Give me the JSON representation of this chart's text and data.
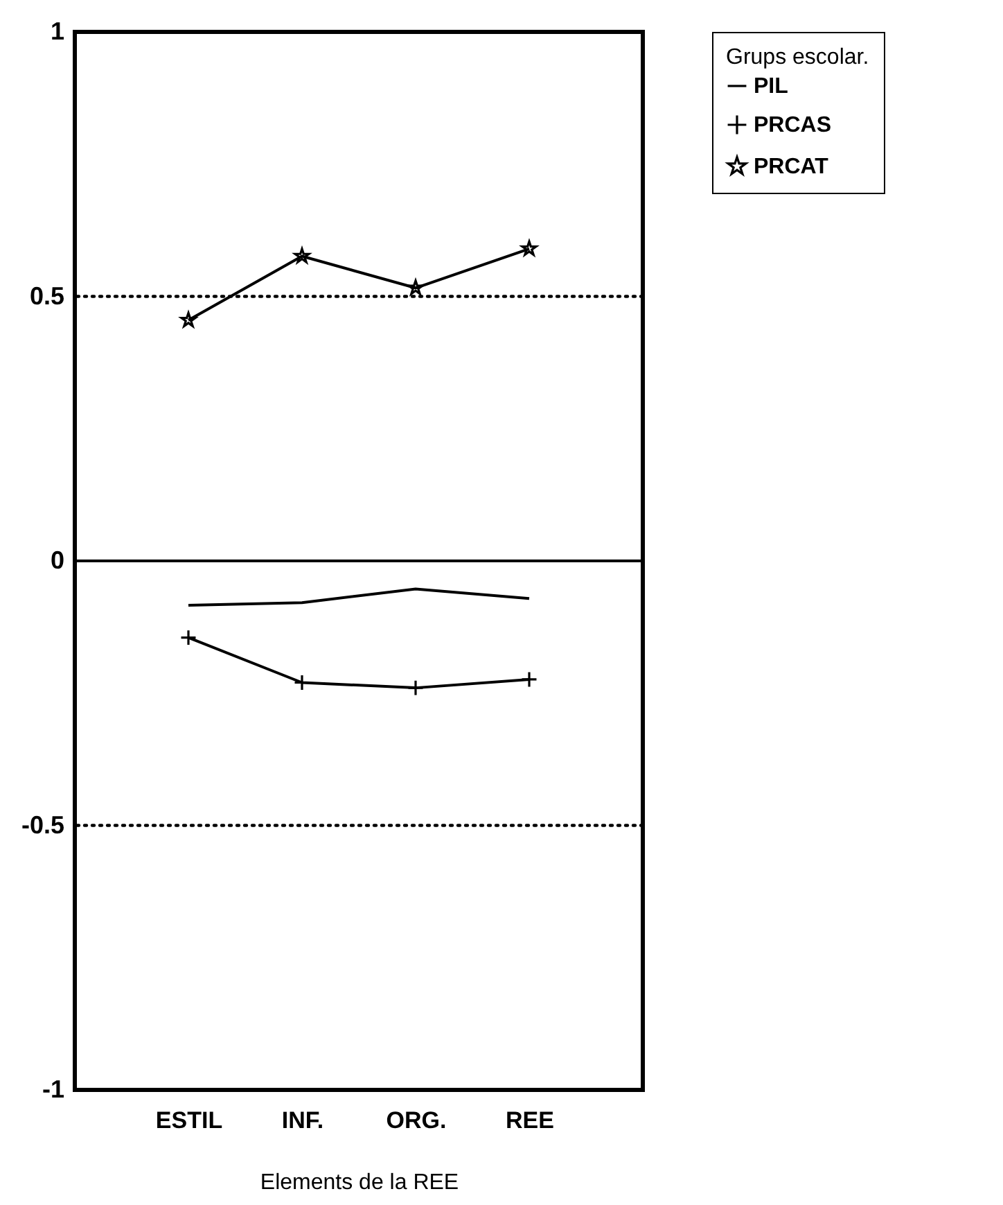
{
  "chart_data": {
    "type": "line",
    "xlabel": "Elements de la REE",
    "legend_title": "Grups escolar.",
    "categories": [
      "ESTIL",
      "INF.",
      "ORG.",
      "REE"
    ],
    "series": [
      {
        "name": "PIL",
        "color": "#000000",
        "marker": "none",
        "values": [
          -0.084,
          -0.079,
          -0.053,
          -0.071
        ]
      },
      {
        "name": "PRCAS",
        "color": "#000000",
        "marker": "cross",
        "values": [
          -0.145,
          -0.23,
          -0.24,
          -0.224
        ]
      },
      {
        "name": "PRCAT",
        "color": "#000000",
        "marker": "star",
        "values": [
          0.455,
          0.576,
          0.516,
          0.59
        ]
      }
    ],
    "ylim": [
      -1,
      1
    ],
    "yticks": [
      -1,
      -0.5,
      0,
      0.5,
      1
    ],
    "ref_lines": [
      {
        "axis": "y",
        "value": 0.5,
        "line_style": "dotted",
        "color": "#000000"
      },
      {
        "axis": "y",
        "value": 0,
        "line_style": "solid",
        "color": "#000000"
      },
      {
        "axis": "y",
        "value": -0.5,
        "line_style": "dotted",
        "color": "#000000"
      }
    ],
    "grid": false,
    "legend": "right",
    "line_style": "solid"
  }
}
